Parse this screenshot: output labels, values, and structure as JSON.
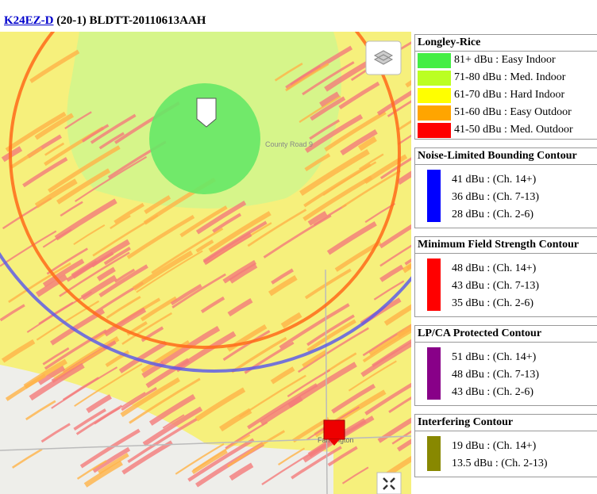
{
  "header": {
    "station_link": "K24EZ-D",
    "details": "(20-1) BLDTT-20110613AAH"
  },
  "map": {
    "labels": [
      "County Road 9",
      "Farmington"
    ]
  },
  "legend": {
    "sections": [
      {
        "title": "Longley-Rice",
        "items": [
          {
            "label": "81+ dBu : Easy Indoor",
            "color": "#44ee44"
          },
          {
            "label": "71-80 dBu : Med. Indoor",
            "color": "#bbff22"
          },
          {
            "label": "61-70 dBu : Hard Indoor",
            "color": "#ffff00"
          },
          {
            "label": "51-60 dBu : Easy Outdoor",
            "color": "#ffa500"
          },
          {
            "label": "41-50 dBu : Med. Outdoor",
            "color": "#ff0000"
          }
        ]
      },
      {
        "title": "Noise-Limited Bounding Contour",
        "color": "#0000ff",
        "items": [
          "41 dBu : (Ch. 14+)",
          "36 dBu : (Ch. 7-13)",
          "28 dBu : (Ch. 2-6)"
        ]
      },
      {
        "title": "Minimum Field Strength Contour",
        "color": "#ff0000",
        "items": [
          "48 dBu : (Ch. 14+)",
          "43 dBu : (Ch. 7-13)",
          "35 dBu : (Ch. 2-6)"
        ]
      },
      {
        "title": "LP/CA Protected Contour",
        "color": "#880088",
        "items": [
          "51 dBu : (Ch. 14+)",
          "48 dBu : (Ch. 7-13)",
          "43 dBu : (Ch. 2-6)"
        ]
      },
      {
        "title": "Interfering Contour",
        "color": "#888800",
        "items": [
          "19 dBu : (Ch. 14+)",
          "13.5 dBu : (Ch. 2-13)"
        ]
      }
    ]
  }
}
